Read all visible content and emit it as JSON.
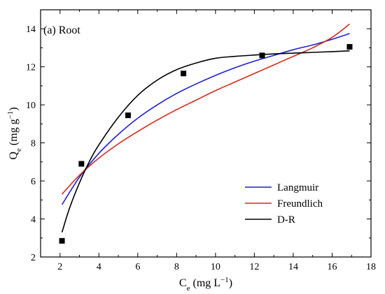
{
  "chart_data": {
    "type": "scatter",
    "title": "(a) Root",
    "xlabel": {
      "main": "C",
      "sub": "e",
      "unit_pre": " (mg L",
      "unit_sup": "−1",
      "unit_post": ")"
    },
    "ylabel": {
      "main": "Q",
      "sub": "e",
      "unit_pre": " (mg g",
      "unit_sup": "−1",
      "unit_post": ")"
    },
    "xlim": [
      1,
      18
    ],
    "ylim": [
      2,
      15
    ],
    "xticks": [
      2,
      4,
      6,
      8,
      10,
      12,
      14,
      16,
      18
    ],
    "yticks": [
      2,
      4,
      6,
      8,
      10,
      12,
      14
    ],
    "grid": false,
    "legend_position": "bottom-right",
    "points": {
      "x": [
        2.1,
        3.1,
        5.5,
        8.35,
        12.4,
        16.9
      ],
      "y": [
        2.85,
        6.9,
        9.45,
        11.65,
        12.6,
        13.05
      ]
    },
    "series": [
      {
        "name": "Langmuir",
        "color": "#1f1fd0",
        "x": [
          2.1,
          3.0,
          4.0,
          5.0,
          6.0,
          7.0,
          8.0,
          9.0,
          10.0,
          11.0,
          12.0,
          13.0,
          14.0,
          15.0,
          16.0,
          16.9
        ],
        "y": [
          4.75,
          6.2,
          7.45,
          8.45,
          9.3,
          10.0,
          10.6,
          11.1,
          11.55,
          11.95,
          12.3,
          12.6,
          12.9,
          13.15,
          13.45,
          13.75
        ]
      },
      {
        "name": "Freundlich",
        "color": "#d02a1a",
        "x": [
          2.1,
          3.0,
          4.0,
          5.0,
          6.0,
          7.0,
          8.0,
          9.0,
          10.0,
          11.0,
          12.0,
          13.0,
          14.0,
          15.0,
          16.0,
          16.9
        ],
        "y": [
          5.3,
          6.3,
          7.2,
          7.95,
          8.6,
          9.2,
          9.75,
          10.25,
          10.75,
          11.2,
          11.65,
          12.1,
          12.55,
          13.0,
          13.55,
          14.25
        ]
      },
      {
        "name": "D-R",
        "color": "#000000",
        "x": [
          2.1,
          2.5,
          3.0,
          3.5,
          4.0,
          5.0,
          6.0,
          7.0,
          8.0,
          9.0,
          10.0,
          11.0,
          12.0,
          13.0,
          14.0,
          15.0,
          16.0,
          16.9
        ],
        "y": [
          3.3,
          4.6,
          5.9,
          7.0,
          7.9,
          9.35,
          10.5,
          11.3,
          11.85,
          12.2,
          12.45,
          12.55,
          12.62,
          12.68,
          12.72,
          12.76,
          12.8,
          12.84
        ]
      }
    ]
  }
}
